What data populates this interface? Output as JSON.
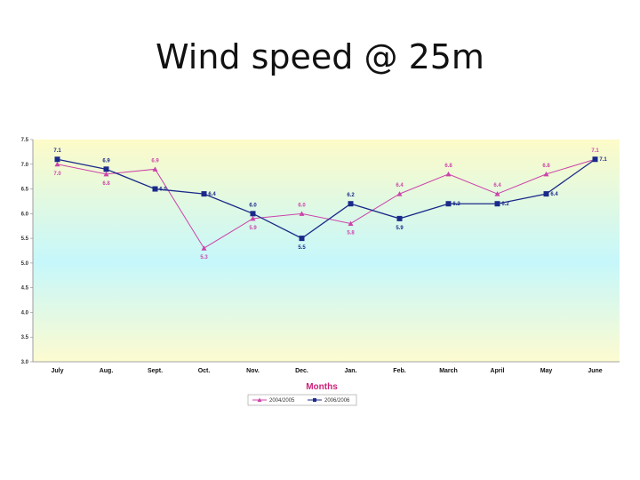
{
  "slide": {
    "title": "Wind speed @ 25m"
  },
  "chart_data": {
    "type": "line",
    "title": "",
    "xlabel": "Months",
    "ylabel": "",
    "categories": [
      "July",
      "Aug.",
      "Sept.",
      "Oct.",
      "Nov.",
      "Dec.",
      "Jan.",
      "Feb.",
      "March",
      "April",
      "May",
      "June"
    ],
    "ylim": [
      3.0,
      7.5
    ],
    "yticks": [
      "3.0",
      "3.5",
      "4.0",
      "4.5",
      "5.0",
      "5.5",
      "6.0",
      "6.5",
      "7.0",
      "7.5"
    ],
    "grid": false,
    "legend_position": "bottom",
    "series": [
      {
        "name": "2004/2005",
        "color": "#cc44aa",
        "marker": "triangle",
        "values": [
          7.0,
          6.8,
          6.9,
          5.3,
          5.9,
          6.0,
          5.8,
          6.4,
          6.8,
          6.4,
          6.8,
          7.1
        ],
        "labels": [
          "7.0",
          "6.8",
          "6.9",
          "5.3",
          "5.9",
          "6.0",
          "5.8",
          "6.4",
          "6.8",
          "6.4",
          "6.8",
          "7.1"
        ]
      },
      {
        "name": "2006/2006",
        "color": "#1a2a8a",
        "marker": "square",
        "values": [
          7.1,
          6.9,
          6.5,
          6.4,
          6.0,
          5.5,
          6.2,
          5.9,
          6.2,
          6.2,
          6.4,
          7.1
        ],
        "labels": [
          "7.1",
          "6.9",
          "6.5",
          "6.4",
          "6.0",
          "5.5",
          "6.2",
          "5.9",
          "6.2",
          "6.2",
          "6.4",
          "7.1"
        ]
      }
    ],
    "background_gradient": [
      "#fdfbc8",
      "#c6f7fb",
      "#fdfbd0"
    ]
  }
}
